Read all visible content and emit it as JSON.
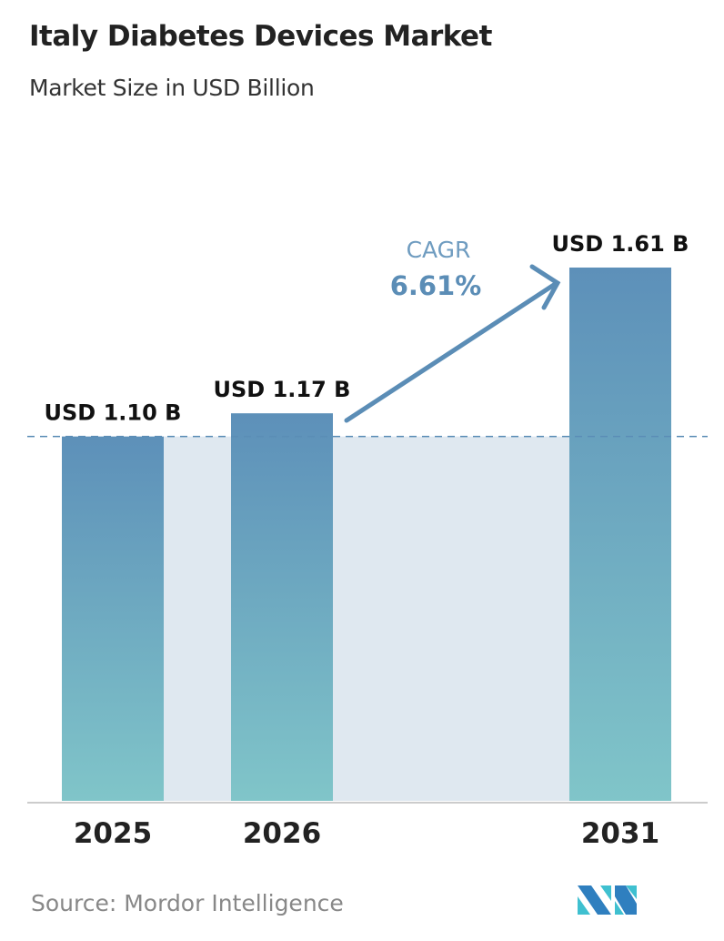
{
  "header": {
    "title": "Italy Diabetes Devices Market",
    "subtitle": "Market Size in USD Billion"
  },
  "chart_data": {
    "type": "bar",
    "title": "Italy Diabetes Devices Market",
    "subtitle": "Market Size in USD Billion",
    "categories": [
      "2025",
      "2026",
      "2031"
    ],
    "values": [
      1.1,
      1.17,
      1.61
    ],
    "data_labels": [
      "USD 1.10 B",
      "USD 1.17 B",
      "USD 1.61 B"
    ],
    "ylim": [
      0,
      1.61
    ],
    "grid": false,
    "reference_line": {
      "value": 1.1,
      "style": "dashed"
    },
    "annotation": {
      "label": "CAGR",
      "value": "6.61%"
    },
    "colors": {
      "bar_top": "#5d90b9",
      "bar_bottom": "#80c5c9",
      "band": "#dfe8f0",
      "accent": "#5b8db6"
    }
  },
  "footer": {
    "source": "Source:  Mordor Intelligence",
    "logo_text": "Mordor Intelligence logo"
  }
}
